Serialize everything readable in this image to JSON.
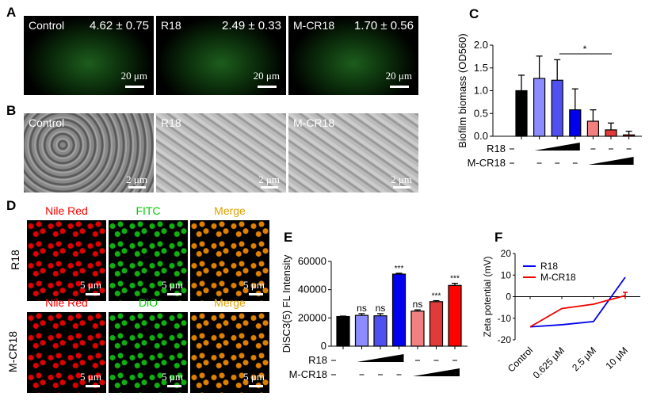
{
  "panels": {
    "A": "A",
    "B": "B",
    "C": "C",
    "D": "D",
    "E": "E",
    "F": "F"
  },
  "panelA": [
    {
      "label": "Control",
      "value": "4.62 ± 0.75",
      "scale": "20 μm"
    },
    {
      "label": "R18",
      "value": "2.49 ± 0.33",
      "scale": "20 μm"
    },
    {
      "label": "M-CR18",
      "value": "1.70 ± 0.56",
      "scale": "20 μm"
    }
  ],
  "panelB": [
    {
      "label": "Control",
      "scale": "2 μm"
    },
    {
      "label": "R18",
      "scale": "2 μm"
    },
    {
      "label": "M-CR18",
      "scale": "2 μm"
    }
  ],
  "panelD": {
    "columns": [
      {
        "label": "Nile Red",
        "color": "#ff0000"
      },
      {
        "label": "FITC",
        "color": "#00cc00"
      },
      {
        "label": "Merge",
        "color": "#e0a000"
      }
    ],
    "columns2": [
      {
        "label": "Nile Red",
        "color": "#ff0000"
      },
      {
        "label": "DiO",
        "color": "#00cc00"
      },
      {
        "label": "Merge",
        "color": "#e0a000"
      }
    ],
    "rows": [
      "R18",
      "M-CR18"
    ],
    "scale": "5 μm"
  },
  "chart_data": [
    {
      "type": "bar",
      "ylabel": "Biofilm biomass (OD560)",
      "ylim": [
        0,
        2.0
      ],
      "yticks": [
        "0.0",
        "0.5",
        "1.0",
        "1.5",
        "2.0"
      ],
      "values": [
        1.0,
        1.27,
        1.23,
        0.58,
        0.33,
        0.14,
        0.03
      ],
      "errors": [
        0.34,
        0.49,
        0.45,
        0.46,
        0.25,
        0.15,
        0.08
      ],
      "colors": [
        "#000000",
        "#8c8cff",
        "#5050f0",
        "#0000ee",
        "#f28080",
        "#e03a3a",
        "#cc0000"
      ],
      "annotation": "*",
      "rows": [
        {
          "label": "R18",
          "marks": [
            "–",
            "ramp",
            "–",
            "–",
            "–"
          ]
        },
        {
          "label": "M-CR18",
          "marks": [
            "–",
            "–",
            "–",
            "–",
            "ramp"
          ]
        }
      ]
    },
    {
      "type": "bar",
      "ylabel": "DiSC3(5) FL Intensity",
      "ylim": [
        0,
        60000
      ],
      "yticks": [
        "0",
        "20000",
        "40000",
        "60000"
      ],
      "values": [
        21000,
        21800,
        21500,
        51000,
        24800,
        31500,
        43000
      ],
      "errors": [
        300,
        1200,
        1500,
        600,
        900,
        700,
        1500
      ],
      "labels": [
        "",
        "ns",
        "ns",
        "***",
        "ns",
        "***",
        "***"
      ],
      "colors": [
        "#000000",
        "#8c8cff",
        "#5050f0",
        "#0000ee",
        "#f28080",
        "#e03a3a",
        "#ff0000"
      ],
      "rows": [
        {
          "label": "R18"
        },
        {
          "label": "M-CR18"
        }
      ]
    },
    {
      "type": "line",
      "ylabel": "Zeta potential (mV)",
      "ylim": [
        -20,
        20
      ],
      "yticks": [
        "-20",
        "-10",
        "0",
        "10",
        "20"
      ],
      "categories": [
        "Control",
        "0.625 μM",
        "2.5 μM",
        "10 μM"
      ],
      "series": [
        {
          "name": "R18",
          "color": "#0000ee",
          "values": [
            -14,
            -13,
            -11.5,
            9
          ]
        },
        {
          "name": "M-CR18",
          "color": "#ee0000",
          "values": [
            -14,
            -5.5,
            -3.5,
            0.5
          ]
        }
      ]
    }
  ]
}
